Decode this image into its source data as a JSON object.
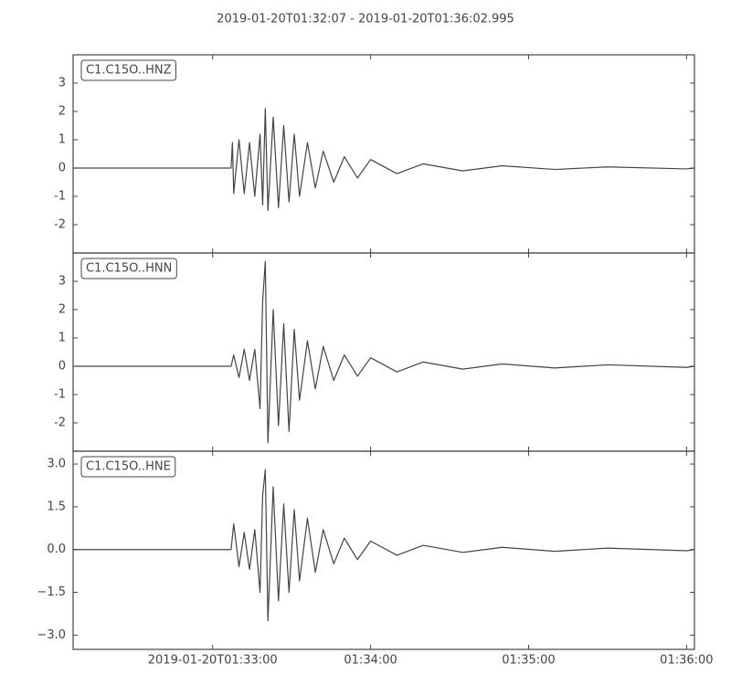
{
  "title": "2019-01-20T01:32:07  -  2019-01-20T01:36:02.995",
  "chart_data": [
    {
      "type": "line",
      "label": "C1.C15O..HNZ",
      "color": "#444444",
      "xlim": [
        "2019-01-20T01:32:07",
        "2019-01-20T01:36:02.995"
      ],
      "ylim": [
        -3,
        4
      ],
      "yticks": [
        -2,
        -1,
        0,
        1,
        2,
        3
      ],
      "x": [
        "2019-01-20T01:32:07",
        "2019-01-20T01:33:07",
        "2019-01-20T01:33:07.5",
        "2019-01-20T01:33:08",
        "2019-01-20T01:33:10",
        "2019-01-20T01:33:12",
        "2019-01-20T01:33:14",
        "2019-01-20T01:33:16",
        "2019-01-20T01:33:18",
        "2019-01-20T01:33:19",
        "2019-01-20T01:33:20",
        "2019-01-20T01:33:21",
        "2019-01-20T01:33:23",
        "2019-01-20T01:33:25",
        "2019-01-20T01:33:27",
        "2019-01-20T01:33:29",
        "2019-01-20T01:33:31",
        "2019-01-20T01:33:33",
        "2019-01-20T01:33:36",
        "2019-01-20T01:33:39",
        "2019-01-20T01:33:42",
        "2019-01-20T01:33:46",
        "2019-01-20T01:33:50",
        "2019-01-20T01:33:55",
        "2019-01-20T01:34:00",
        "2019-01-20T01:34:10",
        "2019-01-20T01:34:20",
        "2019-01-20T01:34:35",
        "2019-01-20T01:34:50",
        "2019-01-20T01:35:10",
        "2019-01-20T01:35:30",
        "2019-01-20T01:36:00",
        "2019-01-20T01:36:02.995"
      ],
      "values": [
        0,
        0,
        0.9,
        -0.9,
        1.0,
        -0.9,
        0.9,
        -1.0,
        1.2,
        -1.3,
        2.1,
        -1.5,
        1.8,
        -1.4,
        1.5,
        -1.2,
        1.2,
        -1.0,
        0.9,
        -0.7,
        0.6,
        -0.5,
        0.4,
        -0.35,
        0.3,
        -0.2,
        0.15,
        -0.1,
        0.08,
        -0.05,
        0.04,
        -0.03,
        0
      ]
    },
    {
      "type": "line",
      "label": "C1.C15O..HNN",
      "color": "#444444",
      "xlim": [
        "2019-01-20T01:32:07",
        "2019-01-20T01:36:02.995"
      ],
      "ylim": [
        -3,
        4
      ],
      "yticks": [
        -2,
        -1,
        0,
        1,
        2,
        3
      ],
      "x": [
        "2019-01-20T01:32:07",
        "2019-01-20T01:33:07",
        "2019-01-20T01:33:08",
        "2019-01-20T01:33:10",
        "2019-01-20T01:33:12",
        "2019-01-20T01:33:14",
        "2019-01-20T01:33:16",
        "2019-01-20T01:33:18",
        "2019-01-20T01:33:19",
        "2019-01-20T01:33:20",
        "2019-01-20T01:33:21",
        "2019-01-20T01:33:23",
        "2019-01-20T01:33:25",
        "2019-01-20T01:33:27",
        "2019-01-20T01:33:29",
        "2019-01-20T01:33:31",
        "2019-01-20T01:33:33",
        "2019-01-20T01:33:36",
        "2019-01-20T01:33:39",
        "2019-01-20T01:33:42",
        "2019-01-20T01:33:46",
        "2019-01-20T01:33:50",
        "2019-01-20T01:33:55",
        "2019-01-20T01:34:00",
        "2019-01-20T01:34:10",
        "2019-01-20T01:34:20",
        "2019-01-20T01:34:35",
        "2019-01-20T01:34:50",
        "2019-01-20T01:35:10",
        "2019-01-20T01:35:30",
        "2019-01-20T01:36:00",
        "2019-01-20T01:36:02.995"
      ],
      "values": [
        0,
        0,
        0.4,
        -0.4,
        0.6,
        -0.5,
        0.6,
        -1.5,
        2.3,
        3.7,
        -2.7,
        2.0,
        -2.1,
        1.5,
        -2.3,
        1.3,
        -1.2,
        0.9,
        -0.8,
        0.7,
        -0.5,
        0.4,
        -0.35,
        0.3,
        -0.2,
        0.15,
        -0.1,
        0.08,
        -0.06,
        0.05,
        -0.04,
        0
      ]
    },
    {
      "type": "line",
      "label": "C1.C15O..HNE",
      "color": "#444444",
      "xlim": [
        "2019-01-20T01:32:07",
        "2019-01-20T01:36:02.995"
      ],
      "ylim": [
        -3.5,
        3.45
      ],
      "yticks": [
        {
          "value": -3,
          "label": "−3.0"
        },
        {
          "value": -1.5,
          "label": "−1.5"
        },
        {
          "value": 0,
          "label": "0.0"
        },
        {
          "value": 1.5,
          "label": "1.5"
        },
        {
          "value": 3,
          "label": "3.0"
        }
      ],
      "xticks": [
        "2019-01-20T01:33:00",
        {
          "value": "2019-01-20T01:34:00",
          "label": "01:34:00"
        },
        {
          "value": "2019-01-20T01:35:00",
          "label": "01:35:00"
        },
        {
          "value": "2019-01-20T01:36:00",
          "label": "01:36:00"
        }
      ],
      "x": [
        "2019-01-20T01:32:07",
        "2019-01-20T01:33:07",
        "2019-01-20T01:33:08",
        "2019-01-20T01:33:10",
        "2019-01-20T01:33:12",
        "2019-01-20T01:33:14",
        "2019-01-20T01:33:16",
        "2019-01-20T01:33:18",
        "2019-01-20T01:33:19",
        "2019-01-20T01:33:20",
        "2019-01-20T01:33:21",
        "2019-01-20T01:33:23",
        "2019-01-20T01:33:25",
        "2019-01-20T01:33:27",
        "2019-01-20T01:33:29",
        "2019-01-20T01:33:31",
        "2019-01-20T01:33:33",
        "2019-01-20T01:33:36",
        "2019-01-20T01:33:39",
        "2019-01-20T01:33:42",
        "2019-01-20T01:33:46",
        "2019-01-20T01:33:50",
        "2019-01-20T01:33:55",
        "2019-01-20T01:34:00",
        "2019-01-20T01:34:10",
        "2019-01-20T01:34:20",
        "2019-01-20T01:34:35",
        "2019-01-20T01:34:50",
        "2019-01-20T01:35:10",
        "2019-01-20T01:35:30",
        "2019-01-20T01:36:00",
        "2019-01-20T01:36:02.995"
      ],
      "values": [
        0,
        0,
        0.9,
        -0.6,
        0.6,
        -0.7,
        0.7,
        -1.5,
        1.9,
        2.8,
        -2.5,
        2.2,
        -1.8,
        1.6,
        -1.5,
        1.4,
        -1.1,
        1.1,
        -0.8,
        0.7,
        -0.5,
        0.4,
        -0.35,
        0.3,
        -0.2,
        0.15,
        -0.1,
        0.08,
        -0.06,
        0.05,
        -0.04,
        0
      ]
    }
  ]
}
